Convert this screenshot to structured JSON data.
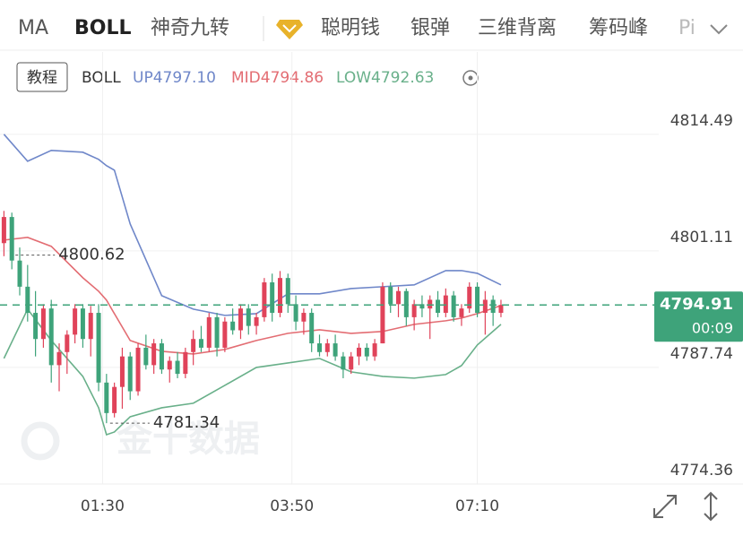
{
  "toolbar": {
    "tabs": [
      "MA",
      "BOLL",
      "神奇九转",
      "聪明钱",
      "银弹",
      "三维背离",
      "筹码峰",
      "Pi"
    ]
  },
  "tutorial_button": "教程",
  "watermark": "金十数据",
  "chart_data": {
    "type": "candlestick",
    "indicator": "BOLL",
    "up_color": "#e0435a",
    "down_color": "#3ea37a",
    "bands": {
      "x": [
        0,
        3,
        6,
        10,
        12,
        13,
        14,
        16,
        20,
        24,
        28,
        32,
        36,
        40,
        44,
        48,
        52,
        56,
        58,
        60,
        63
      ],
      "series": [
        {
          "name": "UP4797.10",
          "color": "#6f87c9",
          "values": [
            4814.49,
            4811.4,
            4812.64,
            4812.43,
            4811.61,
            4810.89,
            4810.37,
            4804.2,
            4795.97,
            4794.43,
            4793.71,
            4793.91,
            4796.18,
            4796.18,
            4796.79,
            4797.0,
            4797.21,
            4798.85,
            4798.85,
            4798.54,
            4797.21
          ]
        },
        {
          "name": "MID4794.86",
          "color": "#e36d73",
          "values": [
            4802.35,
            4802.66,
            4801.63,
            4798.03,
            4796.48,
            4795.46,
            4793.91,
            4790.83,
            4789.59,
            4789.28,
            4789.8,
            4790.83,
            4791.65,
            4792.06,
            4791.65,
            4791.86,
            4792.68,
            4793.09,
            4793.4,
            4793.91,
            4794.84
          ]
        },
        {
          "name": "LOW4792.63",
          "color": "#69b08a",
          "values": [
            4788.77,
            4794.43,
            4790.83,
            4786.71,
            4783.11,
            4780.02,
            4780.33,
            4782.08,
            4783.11,
            4783.63,
            4785.68,
            4787.74,
            4788.25,
            4788.77,
            4787.23,
            4786.71,
            4786.51,
            4786.92,
            4787.95,
            4790.31,
            4792.68
          ]
        }
      ]
    },
    "candles": {
      "open": [
        4802.0,
        4805.0,
        4800.0,
        4797.0,
        4794.0,
        4791.0,
        4794.5,
        4788.0,
        4789.5,
        4791.5,
        4794.5,
        4791.0,
        4794.0,
        4786.0,
        4782.5,
        4785.5,
        4789.0,
        4785.0,
        4790.0,
        4788.0,
        4790.5,
        4787.5,
        4788.5,
        4787.0,
        4789.5,
        4791.0,
        4790.0,
        4793.5,
        4790.0,
        4793.0,
        4792.0,
        4794.5,
        4792.5,
        4793.5,
        4797.5,
        4794.0,
        4798.0,
        4795.0,
        4793.0,
        4794.0,
        4790.5,
        4789.5,
        4790.5,
        4789.0,
        4787.5,
        4789.0,
        4790.0,
        4789.0,
        4790.5,
        4797.0,
        4795.0,
        4796.5,
        4793.5,
        4795.0,
        4794.5,
        4795.5,
        4794.0,
        4796.0,
        4793.5,
        4794.5,
        4797.0,
        4794.0,
        4795.5,
        4794.0
      ],
      "high": [
        4805.7,
        4805.5,
        4801.5,
        4799.5,
        4796.5,
        4795.0,
        4795.5,
        4790.5,
        4792.0,
        4795.0,
        4795.0,
        4794.8,
        4795.0,
        4787.0,
        4786.0,
        4790.0,
        4789.5,
        4790.5,
        4791.5,
        4791.0,
        4791.0,
        4789.0,
        4789.5,
        4790.0,
        4792.0,
        4792.5,
        4794.0,
        4794.0,
        4793.5,
        4794.5,
        4795.0,
        4795.0,
        4794.0,
        4798.0,
        4798.5,
        4798.8,
        4798.5,
        4796.0,
        4794.5,
        4794.5,
        4791.5,
        4791.0,
        4791.5,
        4789.5,
        4789.5,
        4790.5,
        4790.5,
        4791.0,
        4797.5,
        4797.5,
        4797.0,
        4796.8,
        4795.5,
        4796.0,
        4796.0,
        4796.5,
        4796.8,
        4796.5,
        4795.0,
        4797.5,
        4797.5,
        4796.5,
        4796.0,
        4795.5
      ],
      "low": [
        4800.5,
        4799.0,
        4796.0,
        4793.0,
        4789.0,
        4790.0,
        4786.0,
        4785.0,
        4787.0,
        4790.5,
        4790.0,
        4789.0,
        4785.0,
        4781.34,
        4782.0,
        4783.0,
        4784.0,
        4784.5,
        4787.5,
        4787.0,
        4787.0,
        4786.0,
        4786.5,
        4786.5,
        4788.0,
        4789.5,
        4789.5,
        4789.0,
        4789.5,
        4791.5,
        4791.0,
        4791.5,
        4791.5,
        4793.0,
        4793.0,
        4793.5,
        4794.0,
        4792.0,
        4791.5,
        4789.5,
        4789.0,
        4789.0,
        4788.5,
        4786.5,
        4787.0,
        4788.0,
        4788.5,
        4788.5,
        4790.5,
        4794.0,
        4793.5,
        4792.5,
        4792.0,
        4793.5,
        4791.0,
        4793.5,
        4793.5,
        4793.0,
        4792.5,
        4794.0,
        4793.5,
        4791.5,
        4792.5,
        4793.5
      ],
      "close": [
        4805.0,
        4800.0,
        4797.0,
        4794.0,
        4791.0,
        4794.5,
        4788.0,
        4789.5,
        4791.5,
        4794.5,
        4791.0,
        4794.0,
        4786.0,
        4782.5,
        4785.5,
        4789.0,
        4785.0,
        4790.0,
        4788.0,
        4790.5,
        4787.5,
        4788.5,
        4787.0,
        4789.5,
        4791.0,
        4790.0,
        4793.5,
        4790.0,
        4793.0,
        4792.0,
        4794.5,
        4792.5,
        4793.5,
        4797.5,
        4794.0,
        4798.0,
        4795.0,
        4793.0,
        4794.0,
        4790.5,
        4789.5,
        4790.5,
        4789.0,
        4787.5,
        4789.0,
        4790.0,
        4789.0,
        4790.5,
        4797.0,
        4795.0,
        4796.5,
        4793.5,
        4795.0,
        4794.5,
        4795.5,
        4794.0,
        4796.0,
        4793.5,
        4794.5,
        4797.0,
        4794.0,
        4795.5,
        4794.0,
        4794.91
      ]
    },
    "xlim": [
      -0.5,
      83
    ],
    "xticks": [
      {
        "value": 12.5,
        "label": "01:30"
      },
      {
        "value": 36.5,
        "label": "03:50"
      },
      {
        "value": 60,
        "label": "07:10"
      }
    ],
    "ylim": [
      4774.36,
      4819.1
    ],
    "yticks": [
      4814.49,
      4801.11,
      4787.74,
      4774.36
    ],
    "grid": true,
    "annotations": [
      {
        "x": 1,
        "value": 4800.62
      },
      {
        "x": 13,
        "value": 4781.34
      }
    ],
    "current_price": {
      "value": 4794.91,
      "countdown": "00:09",
      "color": "#3ea37a"
    }
  }
}
